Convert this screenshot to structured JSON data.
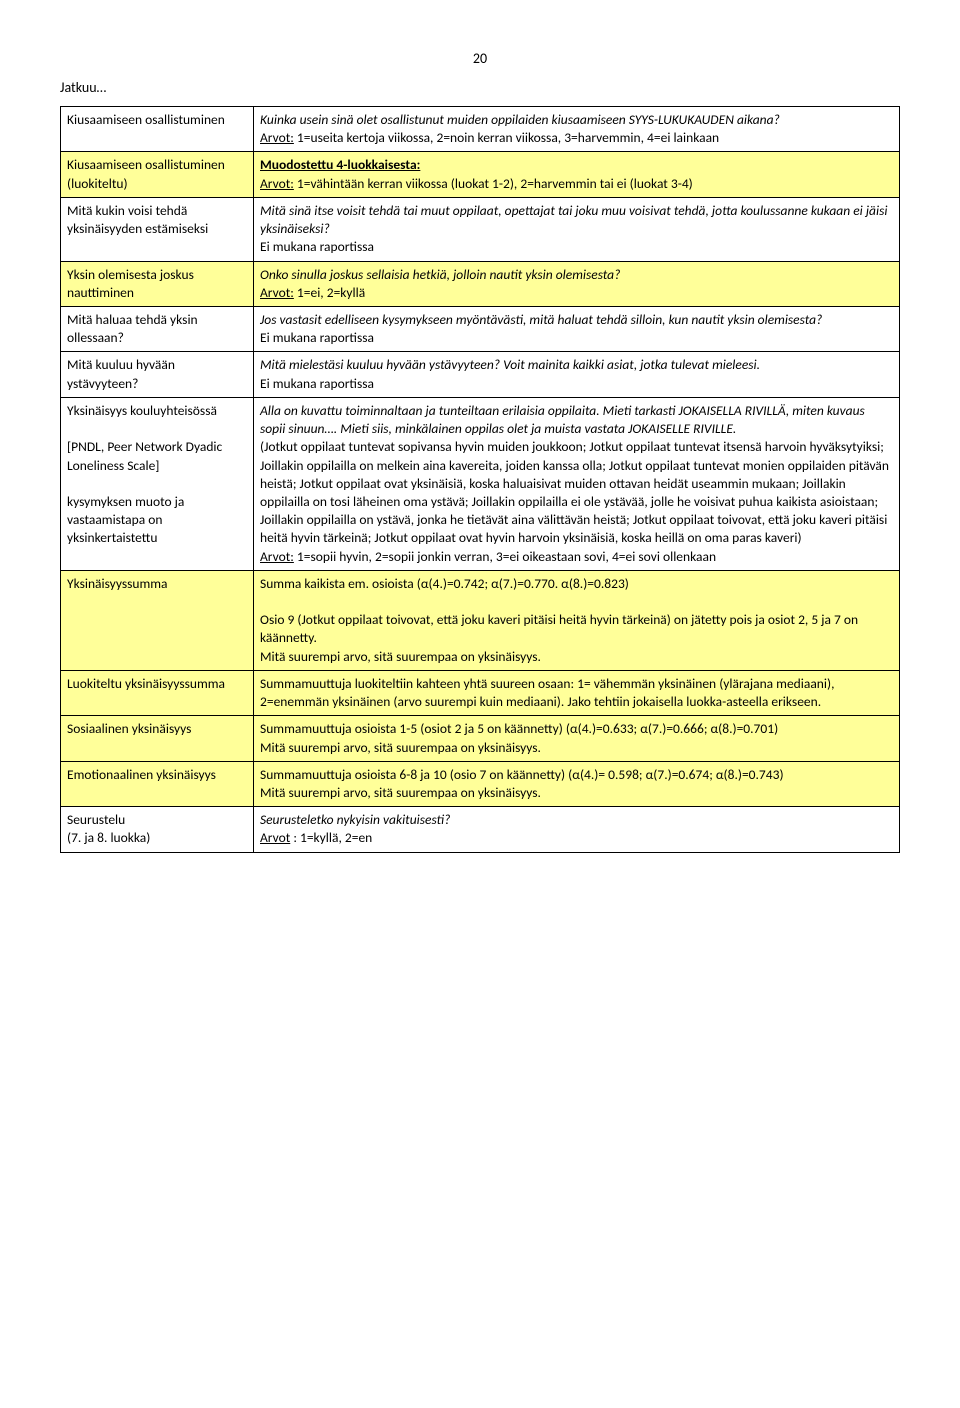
{
  "page_number": "20",
  "continues": "Jatkuu…",
  "colors": {
    "highlight": "#ffff99",
    "border": "#000000",
    "text": "#000000",
    "background": "#ffffff"
  },
  "rows": [
    {
      "left": "Kiusaamiseen osallistuminen",
      "right_italic1": "Kuinka usein sinä olet osallistunut muiden oppilaiden kiusaamiseen SYYS-LUKUKAUDEN aikana?",
      "right_plain1": "Arvot:",
      "right_plain2": " 1=useita kertoja viikossa, 2=noin kerran viikossa, 3=harvemmin, 4=ei lainkaan",
      "left_hl": false,
      "right_hl": false
    },
    {
      "left": "Kiusaamiseen osallistuminen (luokiteltu)",
      "right_bold_underline": "Muodostettu 4-luokkaisesta:",
      "right_underline": "Arvot:",
      "right_plain": " 1=vähintään kerran viikossa (luokat 1-2), 2=harvemmin tai ei (luokat 3-4)",
      "left_hl": true,
      "right_hl": true
    },
    {
      "left": "Mitä kukin voisi tehdä yksinäisyyden estämiseksi",
      "right_italic": "Mitä sinä itse voisit tehdä tai muut oppilaat, opettajat tai joku muu voisivat tehdä, jotta koulussanne kukaan ei jäisi yksinäiseksi?",
      "right_plain": "Ei mukana raportissa",
      "left_hl": false,
      "right_hl": false
    },
    {
      "left": "Yksin olemisesta joskus nauttiminen",
      "right_italic": "Onko sinulla joskus sellaisia hetkiä, jolloin nautit yksin olemisesta?",
      "right_underline": "Arvot:",
      "right_plain": " 1=ei, 2=kyllä",
      "left_hl": true,
      "right_hl": true
    },
    {
      "left": "Mitä haluaa tehdä yksin ollessaan?",
      "right_italic": "Jos vastasit edelliseen kysymykseen myöntävästi, mitä haluat tehdä silloin, kun nautit yksin olemisesta?",
      "right_plain": "Ei mukana raportissa",
      "left_hl": false,
      "right_hl": false
    },
    {
      "left": "Mitä kuuluu hyvään ystävyyteen?",
      "right_italic": "Mitä mielestäsi kuuluu hyvään ystävyyteen? Voit mainita kaikki asiat, jotka tulevat mieleesi.",
      "right_plain": "Ei mukana raportissa",
      "left_hl": false,
      "right_hl": false
    },
    {
      "left1": "Yksinäisyys kouluyhteisössä",
      "left2": "[PNDL, Peer Network Dyadic Loneliness Scale]",
      "left3": "kysymyksen muoto ja vastaamistapa on yksinkertaistettu",
      "right_italic1": "Alla on kuvattu toiminnaltaan ja tunteiltaan erilaisia oppilaita. Mieti tarkasti JOKAISELLA RIVILLÄ, miten kuvaus sopii sinuun…. Mieti siis, minkälainen oppilas olet ja muista vastata JOKAISELLE RIVILLE.",
      "right_paren": "(Jotkut oppilaat tuntevat sopivansa hyvin muiden joukkoon; Jotkut oppilaat tuntevat itsensä harvoin hyväksytyiksi; Joillakin oppilailla on melkein aina kavereita, joiden kanssa olla; Jotkut oppilaat tuntevat monien oppilaiden pitävän heistä; Jotkut oppilaat ovat yksinäisiä, koska haluaisivat muiden ottavan heidät useammin mukaan; Joillakin oppilailla on tosi läheinen oma ystävä; Joillakin oppilailla ei ole ystävää, jolle he voisivat puhua kaikista asioistaan; Joillakin oppilailla on ystävä, jonka he tietävät aina välittävän heistä; Jotkut oppilaat toivovat, että joku kaveri pitäisi heitä hyvin tärkeinä; Jotkut oppilaat ovat hyvin harvoin yksinäisiä, koska heillä on oma paras kaveri)",
      "right_underline": "Arvot:",
      "right_plain2": " 1=sopii hyvin, 2=sopii jonkin verran, 3=ei oikeastaan sovi, 4=ei sovi ollenkaan",
      "left_hl": false,
      "right_hl": false
    },
    {
      "left": "Yksinäisyyssumma",
      "right_line1": "Summa kaikista em. osioista (α(4.)=0.742; α(7.)=0.770. α(8.)=0.823)",
      "right_line2": "Osio 9 (Jotkut oppilaat toivovat, että joku kaveri pitäisi heitä hyvin tärkeinä) on jätetty pois ja osiot  2, 5 ja 7 on käännetty.",
      "right_line3": "Mitä suurempi arvo, sitä suurempaa on yksinäisyys.",
      "left_hl": true,
      "right_hl": true
    },
    {
      "left": "Luokiteltu yksinäisyyssumma",
      "right": "Summamuuttuja luokiteltiin kahteen yhtä suureen osaan: 1= vähemmän yksinäinen (ylärajana mediaani), 2=enemmän yksinäinen (arvo suurempi kuin mediaani). Jako tehtiin jokaisella luokka-asteella erikseen.",
      "left_hl": true,
      "right_hl": true
    },
    {
      "left": "Sosiaalinen yksinäisyys",
      "right_line1": "Summamuuttuja osioista 1-5 (osiot 2 ja 5 on käännetty) (α(4.)=0.633; α(7.)=0.666; α(8.)=0.701)",
      "right_line2": "Mitä suurempi arvo, sitä suurempaa on yksinäisyys.",
      "left_hl": true,
      "right_hl": true
    },
    {
      "left": "Emotionaalinen yksinäisyys",
      "right_line1": "Summamuuttuja osioista 6-8 ja 10 (osio 7 on käännetty) (α(4.)= 0.598; α(7.)=0.674; α(8.)=0.743)",
      "right_line2": "Mitä suurempi arvo, sitä suurempaa on yksinäisyys.",
      "left_hl": true,
      "right_hl": true
    },
    {
      "left": "Seurustelu\n(7. ja 8. luokka)",
      "right_italic": "Seurusteletko nykyisin vakituisesti?",
      "right_underline": "Arvot",
      "right_plain": " : 1=kyllä, 2=en",
      "left_hl": false,
      "right_hl": false
    }
  ]
}
